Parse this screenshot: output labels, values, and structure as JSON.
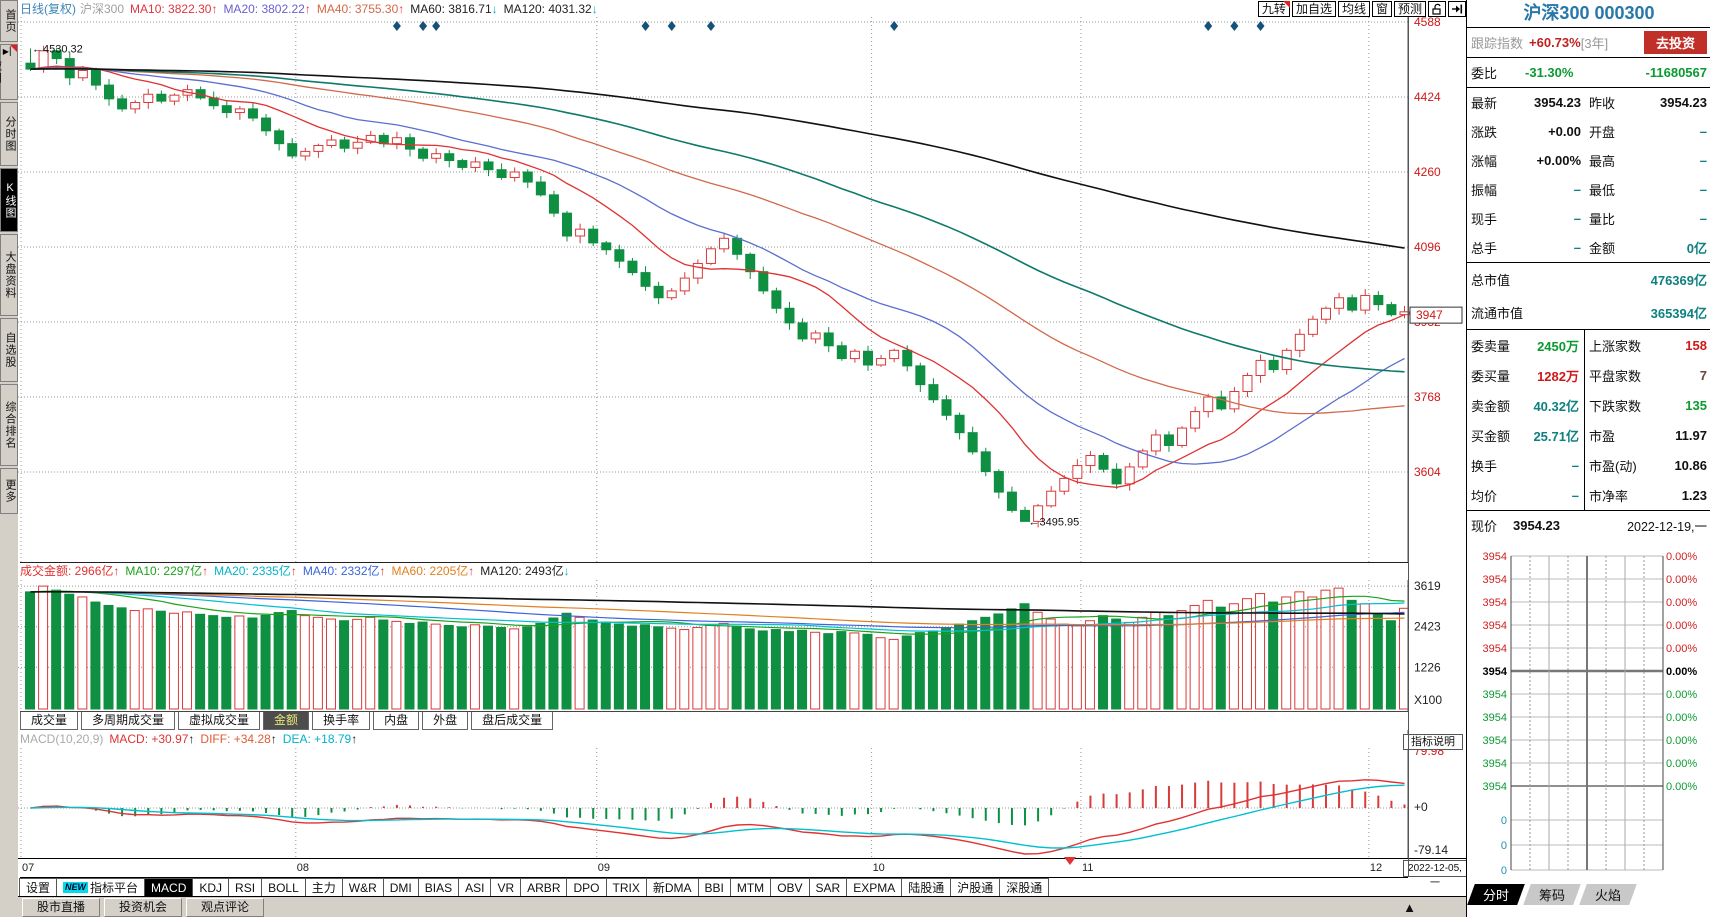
{
  "toolbar": {
    "period": "日线(复权)",
    "symbol": "沪深300",
    "ma": [
      {
        "t": "MA10: 3822.30",
        "a": "↑",
        "c": "#e03540",
        "ac": "#e03540"
      },
      {
        "t": "MA20: 3802.22",
        "a": "↑",
        "c": "#6a5fd0",
        "ac": "#e03540"
      },
      {
        "t": "MA40: 3755.30",
        "a": "↑",
        "c": "#d2694a",
        "ac": "#e03540"
      },
      {
        "t": "MA60: 3816.71",
        "a": "↓",
        "c": "#222222",
        "ac": "#00b4c8"
      },
      {
        "t": "MA120: 4031.32",
        "a": "↓",
        "c": "#222222",
        "ac": "#00b4c8"
      }
    ],
    "buttons": [
      "九转",
      "加自选",
      "均线",
      "窗",
      "预测"
    ]
  },
  "sidebar": {
    "items": [
      {
        "label": "首页"
      },
      {
        "label": "应用",
        "corner": true,
        "glyph": "▶▏"
      },
      {
        "label": "分时图"
      },
      {
        "label": "K线图",
        "active": true
      },
      {
        "label": "大盘资料"
      },
      {
        "label": "自选股"
      },
      {
        "label": "综合排名"
      },
      {
        "label": "更多"
      }
    ]
  },
  "axis": {
    "main_vals": [
      4588,
      4424,
      4260,
      4096,
      3932,
      3768,
      3604
    ],
    "price_box": "3947",
    "volume": [
      {
        "t": "3619",
        "v": 3619
      },
      {
        "t": "2423",
        "v": 2423
      },
      {
        "t": "1226",
        "v": 1226
      }
    ],
    "volume_unit": "X100",
    "macd": [
      {
        "t": "79.98",
        "c": "#d01818"
      },
      {
        "t": "+0",
        "c": "#222222"
      },
      {
        "t": "-79.14",
        "c": "#222222"
      }
    ]
  },
  "annotations": {
    "high": "←4530.32",
    "low": "←3495.95"
  },
  "vol_header": [
    {
      "t": "成交金额: 2966亿",
      "a": "↑",
      "c": "#e03232",
      "ac": "#e03232"
    },
    {
      "t": "MA10: 2297亿",
      "a": "↑",
      "c": "#1aa21a",
      "ac": "#e03232"
    },
    {
      "t": "MA20: 2335亿",
      "a": "↑",
      "c": "#00b4c8",
      "ac": "#e03232"
    },
    {
      "t": "MA40: 2332亿",
      "a": "↑",
      "c": "#3c64dc",
      "ac": "#e03232"
    },
    {
      "t": "MA60: 2205亿",
      "a": "↑",
      "c": "#e08020",
      "ac": "#e03232"
    },
    {
      "t": "MA120: 2493亿",
      "a": "↓",
      "c": "#222222",
      "ac": "#00b4c8"
    }
  ],
  "vol_tabs": {
    "items": [
      "成交量",
      "多周期成交量",
      "虚拟成交量",
      "金额",
      "换手率",
      "内盘",
      "外盘",
      "盘后成交量"
    ],
    "active": "金额"
  },
  "macd": {
    "name": "MACD(10,20,9)",
    "items": [
      {
        "t": "MACD: +30.97",
        "a": "↑",
        "c": "#e03232"
      },
      {
        "t": "DIFF: +34.28",
        "a": "↑",
        "c": "#e05a32"
      },
      {
        "t": "DEA: +18.79",
        "a": "↑",
        "c": "#00b4c8"
      }
    ],
    "button": "指标说明"
  },
  "xaxis": {
    "months": [
      "07",
      "08",
      "09",
      "10",
      "11",
      "12"
    ],
    "date_box": "2022-12-05,一"
  },
  "indicator_tabs": {
    "items": [
      "设置",
      "指标平台",
      "MACD",
      "KDJ",
      "RSI",
      "BOLL",
      "主力",
      "W&R",
      "DMI",
      "BIAS",
      "ASI",
      "VR",
      "ARBR",
      "DPO",
      "TRIX",
      "新DMA",
      "BBI",
      "MTM",
      "OBV",
      "SAR",
      "EXPMA",
      "陆股通",
      "沪股通",
      "深股通"
    ],
    "active": "MACD",
    "badge": {
      "text": "NEW",
      "on": "指标平台"
    }
  },
  "bottom_bar": [
    "股市直播",
    "投资机会",
    "观点评论"
  ],
  "right_panel": {
    "title": "沪深300 000300",
    "tracking": {
      "label": "跟踪指数",
      "value": "+60.73%",
      "suffix": "[3年]",
      "button": "去投资"
    },
    "weibi": {
      "label": "委比",
      "value": "-31.30%",
      "value2": "-11680567"
    },
    "quote_rows": [
      {
        "l1": "最新",
        "v1": "3954.23",
        "c1": "k",
        "l2": "昨收",
        "v2": "3954.23",
        "c2": "k"
      },
      {
        "l1": "涨跌",
        "v1": "+0.00",
        "c1": "k",
        "l2": "开盘",
        "v2": "–",
        "c2": "dash"
      },
      {
        "l1": "涨幅",
        "v1": "+0.00%",
        "c1": "k",
        "l2": "最高",
        "v2": "–",
        "c2": "dash"
      },
      {
        "l1": "振幅",
        "v1": "–",
        "c1": "dash",
        "l2": "最低",
        "v2": "–",
        "c2": "dash"
      },
      {
        "l1": "现手",
        "v1": "–",
        "c1": "dash",
        "l2": "量比",
        "v2": "–",
        "c2": "dash"
      },
      {
        "l1": "总手",
        "v1": "–",
        "c1": "dash",
        "l2": "金额",
        "v2": "0亿",
        "c2": "teal"
      }
    ],
    "cap_rows": [
      {
        "l": "总市值",
        "v": "476369亿"
      },
      {
        "l": "流通市值",
        "v": "365394亿"
      }
    ],
    "detail_rows": [
      {
        "l1": "委卖量",
        "v1": "2450万",
        "c1": "green",
        "l2": "上涨家数",
        "v2": "158",
        "c2": "red"
      },
      {
        "l1": "委买量",
        "v1": "1282万",
        "c1": "red",
        "l2": "平盘家数",
        "v2": "7",
        "c2": "dark"
      },
      {
        "l1": "卖金额",
        "v1": "40.32亿",
        "c1": "teal",
        "l2": "下跌家数",
        "v2": "135",
        "c2": "green"
      },
      {
        "l1": "买金额",
        "v1": "25.71亿",
        "c1": "teal",
        "l2": "市盈",
        "v2": "11.97",
        "c2": "k"
      },
      {
        "l1": "换手",
        "v1": "–",
        "c1": "dash",
        "l2": "市盈(动)",
        "v2": "10.86",
        "c2": "k"
      },
      {
        "l1": "均价",
        "v1": "–",
        "c1": "dash",
        "l2": "市净率",
        "v2": "1.23",
        "c2": "k"
      }
    ],
    "price_row": {
      "label": "现价",
      "value": "3954.23",
      "date": "2022-12-19,一"
    },
    "mini": {
      "price_label": "3954",
      "pct_label": "0.00%",
      "rows_above": 5,
      "rows_below": 5,
      "vol_label": "0",
      "vol_rows": 3,
      "tabs": [
        {
          "label": "分时",
          "active": true
        },
        {
          "label": "筹码"
        },
        {
          "label": "火焰"
        }
      ]
    }
  },
  "chart_data": {
    "type": "candlestick",
    "symbol": "沪深300",
    "code": "000300",
    "period": "日线",
    "x_month_labels": [
      "07",
      "08",
      "09",
      "10",
      "11",
      "12"
    ],
    "x_month_start_bars": [
      0,
      21,
      44,
      65,
      81,
      103
    ],
    "y_gridlines": [
      4588,
      4424,
      4260,
      4096,
      3932,
      3768,
      3604
    ],
    "volume_gridlines": [
      3619,
      2423,
      1226
    ],
    "macd_range": [
      79.98,
      -79.14
    ],
    "high_annotation": 4530.32,
    "low_annotation": 3495.95,
    "last_close": 3954.23,
    "current_price_axis": 3947,
    "mark_bars": [
      28,
      30,
      31,
      47,
      49,
      52,
      66,
      90,
      92,
      94
    ],
    "closes": [
      4485,
      4525,
      4508,
      4466,
      4482,
      4450,
      4420,
      4398,
      4412,
      4430,
      4415,
      4428,
      4440,
      4422,
      4405,
      4390,
      4398,
      4378,
      4350,
      4322,
      4295,
      4305,
      4318,
      4330,
      4312,
      4325,
      4340,
      4322,
      4335,
      4310,
      4290,
      4300,
      4285,
      4270,
      4282,
      4265,
      4248,
      4260,
      4238,
      4210,
      4170,
      4120,
      4135,
      4105,
      4090,
      4065,
      4040,
      4010,
      3985,
      4000,
      4028,
      4060,
      4092,
      4115,
      4080,
      4042,
      4000,
      3962,
      3930,
      3895,
      3908,
      3880,
      3852,
      3868,
      3838,
      3852,
      3870,
      3836,
      3795,
      3762,
      3728,
      3690,
      3648,
      3605,
      3560,
      3520,
      3496,
      3530,
      3562,
      3590,
      3618,
      3640,
      3610,
      3578,
      3615,
      3650,
      3685,
      3662,
      3700,
      3736,
      3768,
      3742,
      3780,
      3815,
      3848,
      3828,
      3870,
      3905,
      3938,
      3962,
      3985,
      3958,
      3990,
      3970,
      3948,
      3954.23
    ],
    "volumes": [
      3450,
      3620,
      3500,
      3380,
      3300,
      3150,
      3050,
      2980,
      2900,
      2950,
      2880,
      2820,
      2860,
      2790,
      2750,
      2700,
      2740,
      2680,
      2760,
      2840,
      2900,
      2750,
      2700,
      2650,
      2600,
      2640,
      2700,
      2620,
      2580,
      2520,
      2560,
      2500,
      2460,
      2420,
      2480,
      2440,
      2400,
      2360,
      2420,
      2520,
      2680,
      2820,
      2700,
      2620,
      2560,
      2500,
      2440,
      2480,
      2420,
      2380,
      2340,
      2400,
      2460,
      2520,
      2440,
      2360,
      2300,
      2340,
      2280,
      2320,
      2260,
      2220,
      2280,
      2240,
      2200,
      2100,
      2050,
      2150,
      2250,
      2300,
      2400,
      2500,
      2600,
      2700,
      2800,
      2950,
      3100,
      2850,
      2650,
      2500,
      2450,
      2600,
      2750,
      2650,
      2550,
      2700,
      2850,
      2750,
      2900,
      3050,
      3200,
      3000,
      3100,
      3250,
      3400,
      3150,
      3300,
      3450,
      3300,
      3500,
      3560,
      3200,
      3100,
      2800,
      2600,
      2966
    ]
  }
}
